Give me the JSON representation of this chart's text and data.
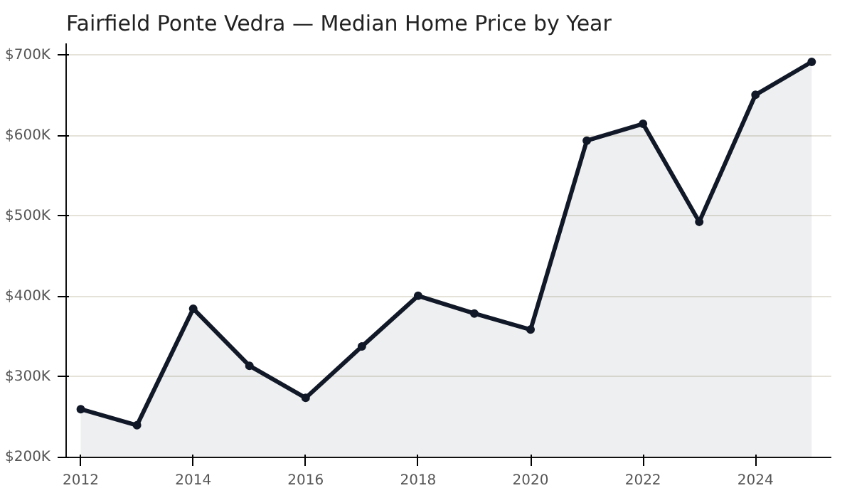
{
  "chart_data": {
    "type": "area",
    "title": "Fairfield Ponte Vedra — Median Home Price by Year",
    "x": [
      2012,
      2013,
      2014,
      2015,
      2016,
      2017,
      2018,
      2019,
      2020,
      2021,
      2022,
      2023,
      2024,
      2025
    ],
    "series": [
      {
        "color": "#111827",
        "values": [
          260000,
          240000,
          385000,
          314000,
          274000,
          338000,
          401000,
          379000,
          359000,
          594000,
          615000,
          493000,
          651000,
          692000
        ]
      }
    ],
    "xlim": [
      2011.74,
      2025.35
    ],
    "ylim": [
      200000,
      715000
    ],
    "xticks": [
      2012,
      2014,
      2016,
      2018,
      2020,
      2022,
      2024
    ],
    "yticks": [
      {
        "value": 200000,
        "label": "$200K"
      },
      {
        "value": 300000,
        "label": "$300K"
      },
      {
        "value": 400000,
        "label": "$400K"
      },
      {
        "value": 500000,
        "label": "$500K"
      },
      {
        "value": 600000,
        "label": "$600K"
      },
      {
        "value": 700000,
        "label": "$700K"
      }
    ],
    "grid": "y",
    "marker": "circle",
    "line_style": "solid"
  }
}
